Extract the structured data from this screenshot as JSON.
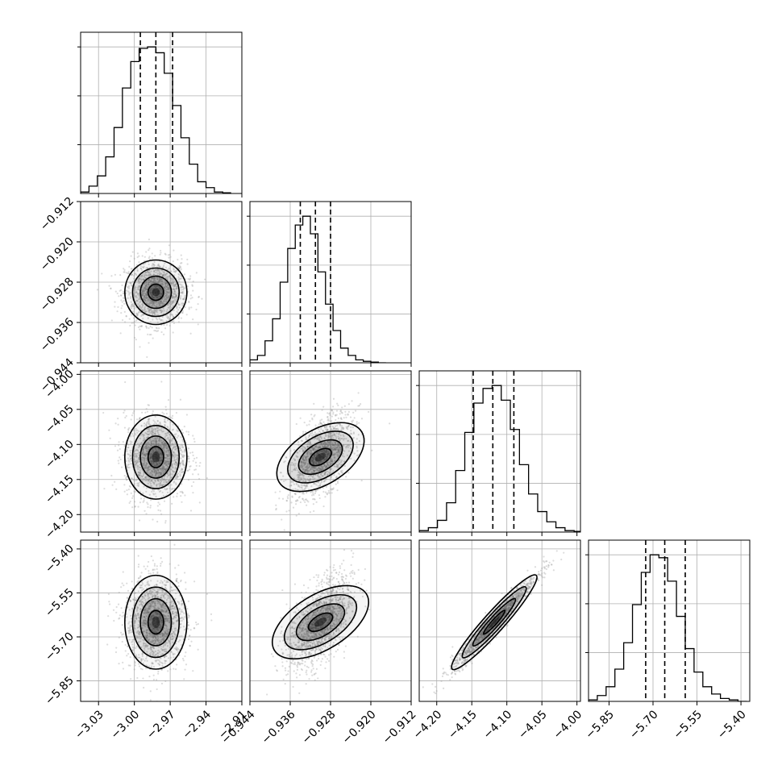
{
  "chart_data": {
    "type": "corner",
    "title": "",
    "grid": true,
    "parameters": [
      {
        "index": 0,
        "range": [
          -3.045,
          -2.91
        ],
        "x_ticks": [
          -3.03,
          -3.0,
          -2.97,
          -2.94,
          -2.91
        ],
        "x_tick_labels": [
          "−3.03",
          "−3.00",
          "−2.97",
          "−2.94",
          "−2.91"
        ],
        "quantiles": [
          -2.995,
          -2.982,
          -2.968
        ],
        "hist_peak": -2.982
      },
      {
        "index": 1,
        "range": [
          -0.944,
          -0.912
        ],
        "x_ticks": [
          -0.944,
          -0.936,
          -0.928,
          -0.92,
          -0.912
        ],
        "x_tick_labels": [
          "−0.944",
          "−0.936",
          "−0.928",
          "−0.920",
          "−0.912"
        ],
        "y_ticks": [
          -0.944,
          -0.936,
          -0.928,
          -0.92,
          -0.912
        ],
        "y_tick_labels": [
          "−0.944",
          "−0.936",
          "−0.928",
          "−0.920",
          "−0.912"
        ],
        "quantiles": [
          -0.934,
          -0.931,
          -0.928
        ],
        "hist_peak": -0.931
      },
      {
        "index": 2,
        "range": [
          -4.225,
          -3.995
        ],
        "x_ticks": [
          -4.2,
          -4.15,
          -4.1,
          -4.05,
          -4.0
        ],
        "x_tick_labels": [
          "−4.20",
          "−4.15",
          "−4.10",
          "−4.05",
          "−4.00"
        ],
        "y_ticks": [
          -4.2,
          -4.15,
          -4.1,
          -4.05,
          -4.0
        ],
        "y_tick_labels": [
          "−4.20",
          "−4.15",
          "−4.10",
          "−4.05",
          "−4.00"
        ],
        "quantiles": [
          -4.148,
          -4.12,
          -4.09
        ],
        "hist_peak": -4.115
      },
      {
        "index": 3,
        "range": [
          -5.92,
          -5.37
        ],
        "x_ticks": [
          -5.85,
          -5.7,
          -5.55,
          -5.4
        ],
        "x_tick_labels": [
          "−5.85",
          "−5.70",
          "−5.55",
          "−5.40"
        ],
        "y_ticks": [
          -5.85,
          -5.7,
          -5.55,
          -5.4
        ],
        "y_tick_labels": [
          "−5.85",
          "−5.70",
          "−5.55",
          "−5.40"
        ],
        "quantiles": [
          -5.725,
          -5.66,
          -5.59
        ],
        "hist_peak": -5.66
      }
    ],
    "histograms": [
      {
        "param": 0,
        "bin_edges": [
          -3.045,
          -3.038,
          -3.031,
          -3.024,
          -3.017,
          -3.01,
          -3.003,
          -2.996,
          -2.989,
          -2.982,
          -2.975,
          -2.968,
          -2.961,
          -2.954,
          -2.947,
          -2.94,
          -2.933,
          -2.926,
          -2.919
        ],
        "counts": [
          0.01,
          0.05,
          0.12,
          0.25,
          0.45,
          0.72,
          0.9,
          0.99,
          1.0,
          0.96,
          0.82,
          0.6,
          0.38,
          0.2,
          0.08,
          0.04,
          0.01,
          0.005
        ]
      },
      {
        "param": 1,
        "bin_edges": [
          -0.944,
          -0.9425,
          -0.941,
          -0.9395,
          -0.938,
          -0.9365,
          -0.935,
          -0.9335,
          -0.932,
          -0.9305,
          -0.929,
          -0.9275,
          -0.926,
          -0.9245,
          -0.923,
          -0.9215,
          -0.92,
          -0.9185,
          -0.917
        ],
        "counts": [
          0.02,
          0.05,
          0.15,
          0.3,
          0.55,
          0.78,
          0.94,
          1.0,
          0.88,
          0.62,
          0.4,
          0.22,
          0.1,
          0.05,
          0.02,
          0.01,
          0.005,
          0.0
        ]
      },
      {
        "param": 2,
        "bin_edges": [
          -4.225,
          -4.212,
          -4.199,
          -4.186,
          -4.173,
          -4.16,
          -4.147,
          -4.134,
          -4.121,
          -4.108,
          -4.095,
          -4.082,
          -4.069,
          -4.056,
          -4.043,
          -4.03,
          -4.017,
          -4.004,
          -3.995
        ],
        "counts": [
          0.01,
          0.03,
          0.08,
          0.2,
          0.42,
          0.68,
          0.88,
          0.98,
          1.0,
          0.9,
          0.7,
          0.46,
          0.26,
          0.14,
          0.07,
          0.03,
          0.01,
          0.005
        ]
      },
      {
        "param": 3,
        "bin_edges": [
          -5.92,
          -5.89,
          -5.86,
          -5.83,
          -5.8,
          -5.77,
          -5.74,
          -5.71,
          -5.68,
          -5.65,
          -5.62,
          -5.59,
          -5.56,
          -5.53,
          -5.5,
          -5.47,
          -5.44,
          -5.41,
          -5.38
        ],
        "counts": [
          0.01,
          0.04,
          0.1,
          0.22,
          0.4,
          0.66,
          0.88,
          1.0,
          0.98,
          0.82,
          0.58,
          0.36,
          0.2,
          0.1,
          0.05,
          0.02,
          0.01,
          0.0
        ]
      }
    ],
    "pairs": [
      {
        "x": 0,
        "y": 1,
        "mean": [
          -2.982,
          -0.93
        ],
        "sd": [
          0.013,
          0.0032
        ],
        "corr": 0.0
      },
      {
        "x": 0,
        "y": 2,
        "mean": [
          -2.982,
          -4.118
        ],
        "sd": [
          0.013,
          0.03
        ],
        "corr": 0.0
      },
      {
        "x": 1,
        "y": 2,
        "mean": [
          -0.93,
          -4.118
        ],
        "sd": [
          0.0032,
          0.03
        ],
        "corr": 0.55
      },
      {
        "x": 0,
        "y": 3,
        "mean": [
          -2.982,
          -5.65
        ],
        "sd": [
          0.013,
          0.08
        ],
        "corr": 0.0
      },
      {
        "x": 1,
        "y": 3,
        "mean": [
          -0.93,
          -5.65
        ],
        "sd": [
          0.0032,
          0.08
        ],
        "corr": 0.55
      },
      {
        "x": 2,
        "y": 3,
        "mean": [
          -4.118,
          -5.65
        ],
        "sd": [
          0.03,
          0.08
        ],
        "corr": 0.97
      }
    ],
    "contour_levels_sigma": [
      0.5,
      1.0,
      1.5,
      2.0
    ],
    "colors": {
      "hist": "#000000",
      "contour": "#000000",
      "density": "#000000",
      "points": "#9a9a9a",
      "grid": "#b0b0b0"
    }
  }
}
